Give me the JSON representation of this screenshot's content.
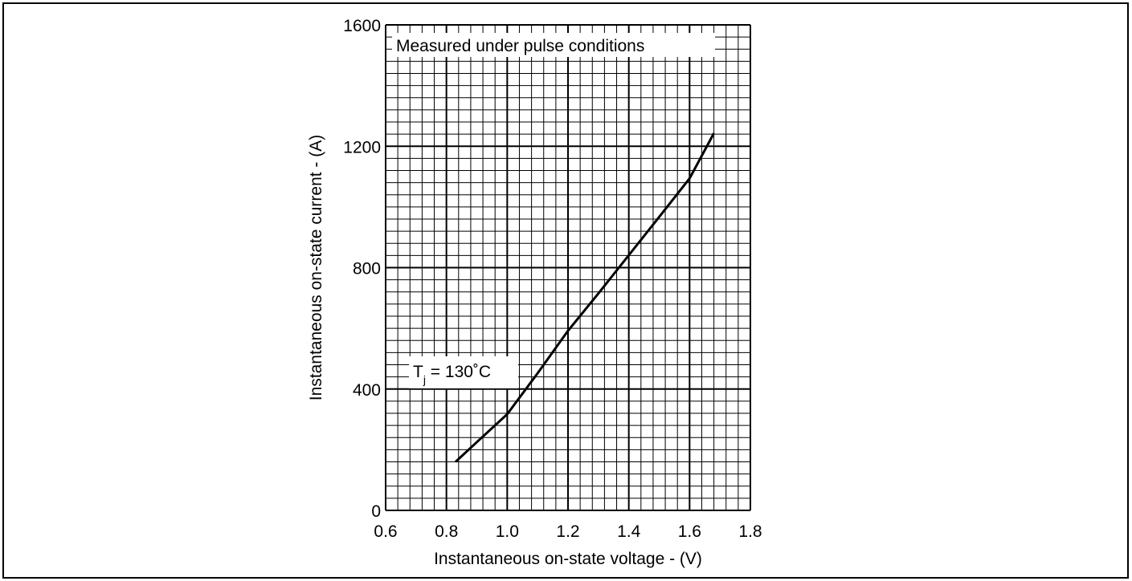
{
  "chart_data": {
    "type": "line",
    "xlabel": "Instantaneous on-state voltage - (V)",
    "ylabel": "Instantaneous on-state current - (A)",
    "annotation": "Measured under pulse conditions",
    "series_label": [
      "T",
      "j",
      " = 130˚C"
    ],
    "x": [
      0.83,
      0.9,
      1.0,
      1.1,
      1.2,
      1.3,
      1.4,
      1.5,
      1.6,
      1.68
    ],
    "series": [
      {
        "color": "#000000",
        "values": [
          160,
          225,
          317,
          452,
          592,
          715,
          841,
          967,
          1094,
          1243
        ]
      }
    ],
    "xlim": [
      0.6,
      1.8
    ],
    "ylim": [
      0,
      1600
    ],
    "xticks": [
      0.6,
      0.8,
      {
        "value": 1,
        "label": "1.0"
      },
      1.2,
      1.4,
      1.6,
      1.8
    ],
    "yticks": [
      0,
      400,
      800,
      1200,
      1600
    ],
    "grid": true,
    "minor_grid": {
      "x": 0.04,
      "y": 40
    }
  }
}
